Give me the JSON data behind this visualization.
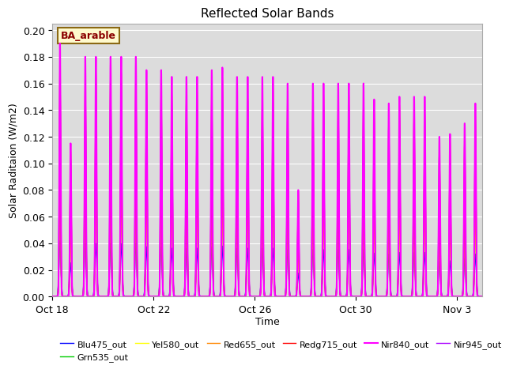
{
  "title": "Reflected Solar Bands",
  "xlabel": "Time",
  "ylabel": "Solar Raditaion (W/m2)",
  "annotation_text": "BA_arable",
  "annotation_color": "#8B0000",
  "annotation_bg": "#FFFACD",
  "annotation_border": "#8B6914",
  "ylim": [
    0.0,
    0.205
  ],
  "yticks": [
    0.0,
    0.02,
    0.04,
    0.06,
    0.08,
    0.1,
    0.12,
    0.14,
    0.16,
    0.18,
    0.2
  ],
  "bg_color": "#DCDCDC",
  "series": [
    {
      "label": "Blu475_out",
      "color": "#0000FF",
      "lw": 1.0,
      "zorder": 3
    },
    {
      "label": "Grn535_out",
      "color": "#00CC00",
      "lw": 1.0,
      "zorder": 3
    },
    {
      "label": "Yel580_out",
      "color": "#FFFF00",
      "lw": 1.0,
      "zorder": 3
    },
    {
      "label": "Red655_out",
      "color": "#FF8800",
      "lw": 1.0,
      "zorder": 3
    },
    {
      "label": "Redg715_out",
      "color": "#FF0000",
      "lw": 1.0,
      "zorder": 4
    },
    {
      "label": "Nir840_out",
      "color": "#FF00FF",
      "lw": 1.5,
      "zorder": 5
    },
    {
      "label": "Nir945_out",
      "color": "#AA00FF",
      "lw": 1.0,
      "zorder": 4
    }
  ],
  "x_tick_labels": [
    "Oct 18",
    "Oct 22",
    "Oct 26",
    "Oct 30",
    "Nov 3"
  ],
  "x_tick_positions": [
    0,
    4,
    8,
    12,
    16
  ],
  "num_days": 17,
  "grid_color": "#FFFFFF",
  "grid_lw": 0.8,
  "figwidth": 6.4,
  "figheight": 4.8,
  "dpi": 100
}
